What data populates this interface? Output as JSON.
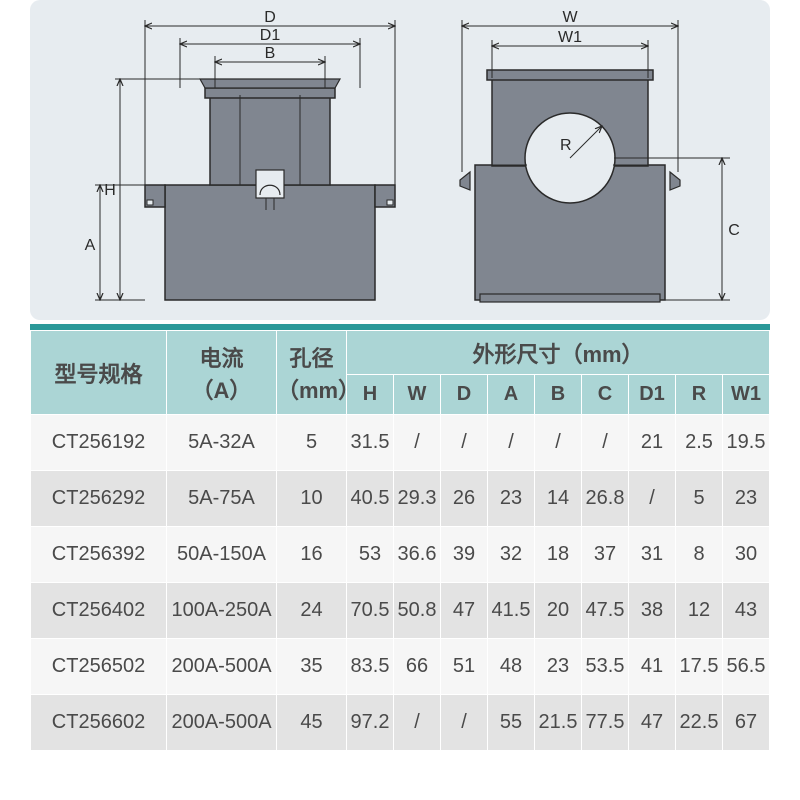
{
  "colors": {
    "diagram_bg": "#e7ecf0",
    "teal_divider": "#2b9999",
    "header_bg": "#abd5d5",
    "row_even_bg": "#f6f6f6",
    "row_odd_bg": "#e3e3e3",
    "text": "#4a4a4a",
    "drawing_fill": "#808690",
    "drawing_stroke": "#2a2a2a"
  },
  "diagram": {
    "labels": {
      "D": "D",
      "D1": "D1",
      "B": "B",
      "H": "H",
      "A": "A",
      "W": "W",
      "W1": "W1",
      "R": "R",
      "C": "C"
    }
  },
  "table": {
    "headers": {
      "model": "型号规格",
      "current": "电流\n（A）",
      "hole": "孔径\n（mm）",
      "dims": "外形尺寸（mm）",
      "sub": [
        "H",
        "W",
        "D",
        "A",
        "B",
        "C",
        "D1",
        "R",
        "W1"
      ]
    },
    "header_row_height_main": 44,
    "header_row_height_sub": 40,
    "rows": [
      {
        "model": "CT256192",
        "current": "5A-32A",
        "hole": "5",
        "dims": [
          "31.5",
          "/",
          "/",
          "/",
          "/",
          "/",
          "21",
          "2.5",
          "19.5"
        ]
      },
      {
        "model": "CT256292",
        "current": "5A-75A",
        "hole": "10",
        "dims": [
          "40.5",
          "29.3",
          "26",
          "23",
          "14",
          "26.8",
          "/",
          "5",
          "23"
        ]
      },
      {
        "model": "CT256392",
        "current": "50A-150A",
        "hole": "16",
        "dims": [
          "53",
          "36.6",
          "39",
          "32",
          "18",
          "37",
          "31",
          "8",
          "30"
        ]
      },
      {
        "model": "CT256402",
        "current": "100A-250A",
        "hole": "24",
        "dims": [
          "70.5",
          "50.8",
          "47",
          "41.5",
          "20",
          "47.5",
          "38",
          "12",
          "43"
        ]
      },
      {
        "model": "CT256502",
        "current": "200A-500A",
        "hole": "35",
        "dims": [
          "83.5",
          "66",
          "51",
          "48",
          "23",
          "53.5",
          "41",
          "17.5",
          "56.5"
        ]
      },
      {
        "model": "CT256602",
        "current": "200A-500A",
        "hole": "45",
        "dims": [
          "97.2",
          "/",
          "/",
          "55",
          "21.5",
          "77.5",
          "47",
          "22.5",
          "67"
        ]
      }
    ]
  }
}
